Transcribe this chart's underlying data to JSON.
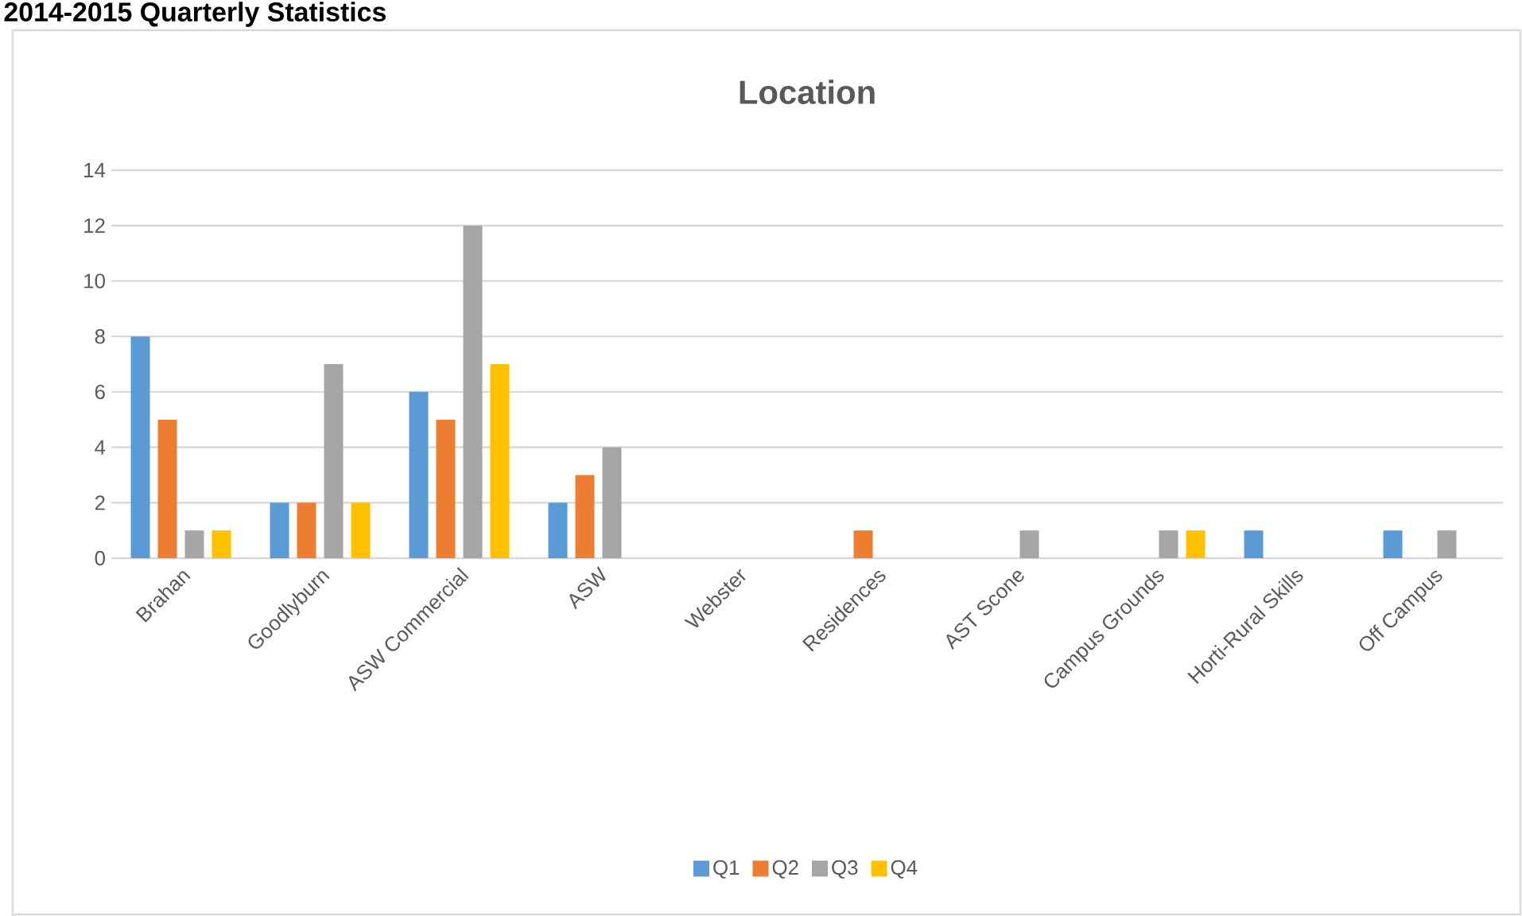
{
  "chart_data": {
    "type": "bar",
    "title": "Location",
    "annotations": [
      "2014-2015 Quarterly Statistics"
    ],
    "categories": [
      "Brahan",
      "Goodlyburn",
      "ASW Commercial",
      "ASW",
      "Webster",
      "Residences",
      "AST Scone",
      "Campus Grounds",
      "Horti-Rural Skills",
      "Off Campus"
    ],
    "series": [
      {
        "name": "Q1",
        "color": "#5b9bd5",
        "values": [
          8,
          2,
          6,
          2,
          null,
          null,
          null,
          null,
          1,
          1
        ]
      },
      {
        "name": "Q2",
        "color": "#ed7d31",
        "values": [
          5,
          2,
          5,
          3,
          null,
          1,
          null,
          null,
          null,
          null
        ]
      },
      {
        "name": "Q3",
        "color": "#a5a5a5",
        "values": [
          1,
          7,
          12,
          4,
          null,
          null,
          1,
          1,
          null,
          1
        ]
      },
      {
        "name": "Q4",
        "color": "#ffc000",
        "values": [
          1,
          2,
          7,
          null,
          null,
          null,
          null,
          1,
          null,
          null
        ]
      }
    ],
    "ylim": [
      0,
      14
    ],
    "yticks": [
      0,
      2,
      4,
      6,
      8,
      10,
      12,
      14
    ],
    "grid": "y",
    "legend": "bottom"
  }
}
